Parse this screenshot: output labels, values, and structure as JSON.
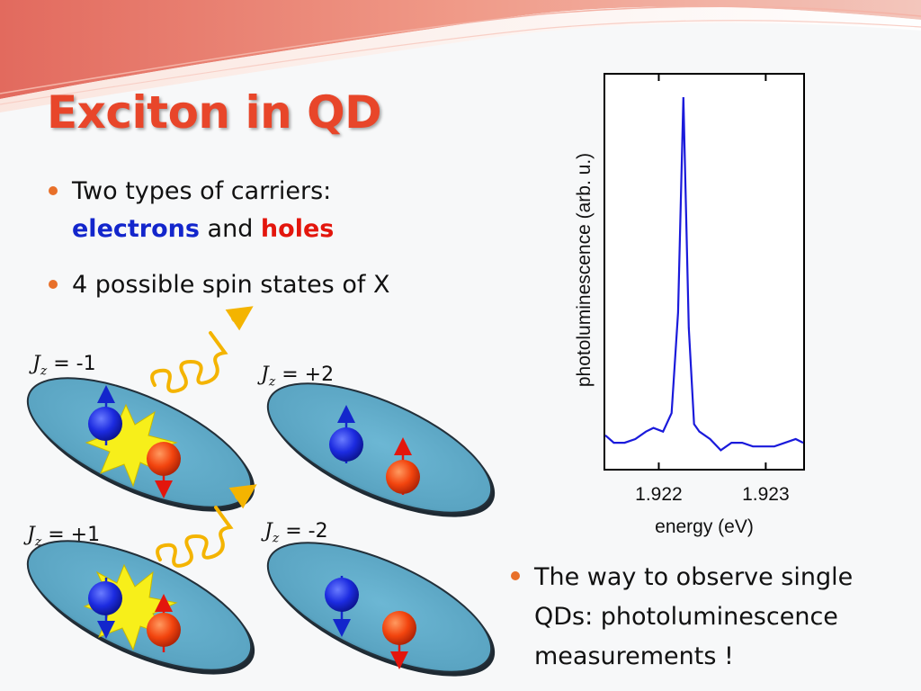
{
  "slide": {
    "title": "Exciton in QD",
    "bullets": {
      "b1_line1": "Two types of carriers:",
      "b1_electrons": "electrons",
      "b1_and": " and ",
      "b1_holes": "holes",
      "b2": "4 possible spin states of X",
      "b3_line1": "The way to observe single",
      "b3_line2": "QDs: photoluminescence",
      "b3_line3": "measurements !"
    },
    "states": [
      {
        "j": "J",
        "sub": "z",
        "value": " = -1"
      },
      {
        "j": "J",
        "sub": "z",
        "value": " = +2"
      },
      {
        "j": "J",
        "sub": "z",
        "value": " = +1"
      },
      {
        "j": "J",
        "sub": "z",
        "value": " = -2"
      }
    ],
    "colors": {
      "title": "#e8462a",
      "electron": "#1326cc",
      "hole": "#e3160d",
      "dot_fill": "#5aa9c8",
      "flash": "#f7ef1a",
      "photon": "#f4b400",
      "spectrum_line": "#1a1adb"
    }
  },
  "chart_data": {
    "type": "line",
    "title": "",
    "xlabel": "energy (eV)",
    "ylabel": "photoluminescence (arb. u.)",
    "xlim": [
      1.9215,
      1.92335
    ],
    "ylim": [
      0,
      1.0
    ],
    "xticks": [
      "1.922",
      "1.923"
    ],
    "xtick_values": [
      1.922,
      1.923
    ],
    "grid": false,
    "series": [
      {
        "x": [
          1.9215,
          1.92158,
          1.92168,
          1.92178,
          1.92188,
          1.92195,
          1.92204,
          1.92212,
          1.92218,
          1.92223,
          1.92228,
          1.92233,
          1.92238,
          1.92248,
          1.92258,
          1.92268,
          1.92278,
          1.92288,
          1.92298,
          1.92308,
          1.92318,
          1.92328,
          1.92335
        ],
        "y": [
          0.09,
          0.07,
          0.07,
          0.08,
          0.1,
          0.11,
          0.1,
          0.15,
          0.42,
          1.0,
          0.38,
          0.12,
          0.1,
          0.08,
          0.05,
          0.07,
          0.07,
          0.06,
          0.06,
          0.06,
          0.07,
          0.08,
          0.07
        ]
      }
    ]
  }
}
